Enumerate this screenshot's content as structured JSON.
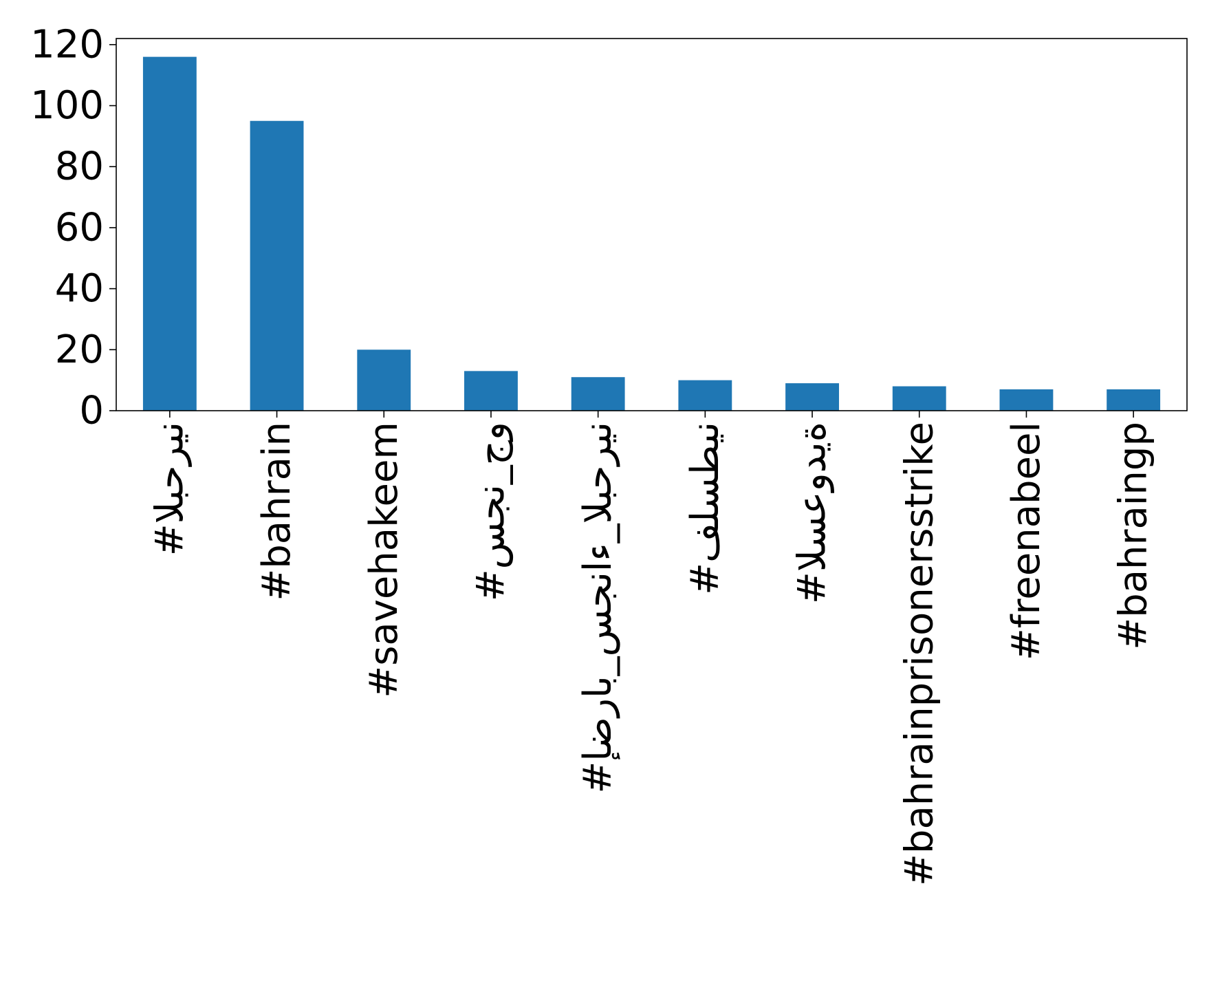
{
  "chart_data": {
    "type": "bar",
    "title": "",
    "xlabel": "",
    "ylabel": "",
    "categories": [
      "#البحرين",
      "#bahrain",
      "#savehakeem",
      "#سجن_جو",
      "#إضراب_سجناء_البحرين",
      "#فلسطين",
      "#السعودية",
      "#bahrainprisonersstrike",
      "#freenabeel",
      "#bahraingp"
    ],
    "values": [
      116,
      95,
      20,
      13,
      11,
      10,
      9,
      8,
      7,
      7
    ],
    "ylim": [
      0,
      122
    ],
    "yticks": [
      0,
      20,
      40,
      60,
      80,
      100,
      120
    ],
    "grid": false,
    "legend": "none",
    "bar_color": "#1f77b4",
    "axis_color": "#000000"
  }
}
